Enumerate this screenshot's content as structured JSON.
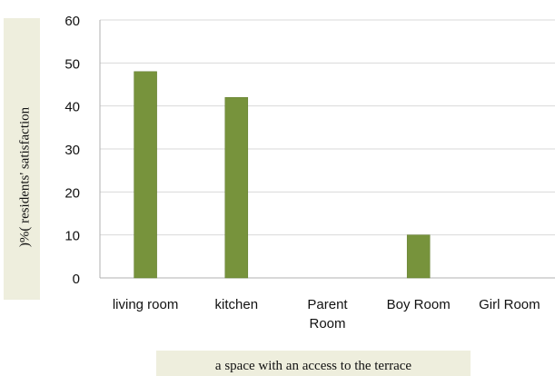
{
  "chart_data": {
    "type": "bar",
    "categories": [
      "living room",
      "kitchen",
      "Parent Room",
      "Boy Room",
      "Girl Room"
    ],
    "category_lines": [
      [
        "living room"
      ],
      [
        "kitchen"
      ],
      [
        "Parent",
        "Room"
      ],
      [
        "Boy Room"
      ],
      [
        "Girl Room"
      ]
    ],
    "values": [
      48,
      42,
      0,
      10,
      0
    ],
    "ylim": [
      0,
      60
    ],
    "yticks": [
      0,
      10,
      20,
      30,
      40,
      50,
      60
    ],
    "xlabel": "a space with an access to the terrace",
    "ylabel": ")%( residents' satisfaction",
    "grid": true,
    "colors": {
      "bar": "#77933c",
      "bar_edge": "#5f7a2c",
      "grid": "#d9d9d9",
      "axis": "#b0b0b0",
      "text": "#111111"
    }
  }
}
